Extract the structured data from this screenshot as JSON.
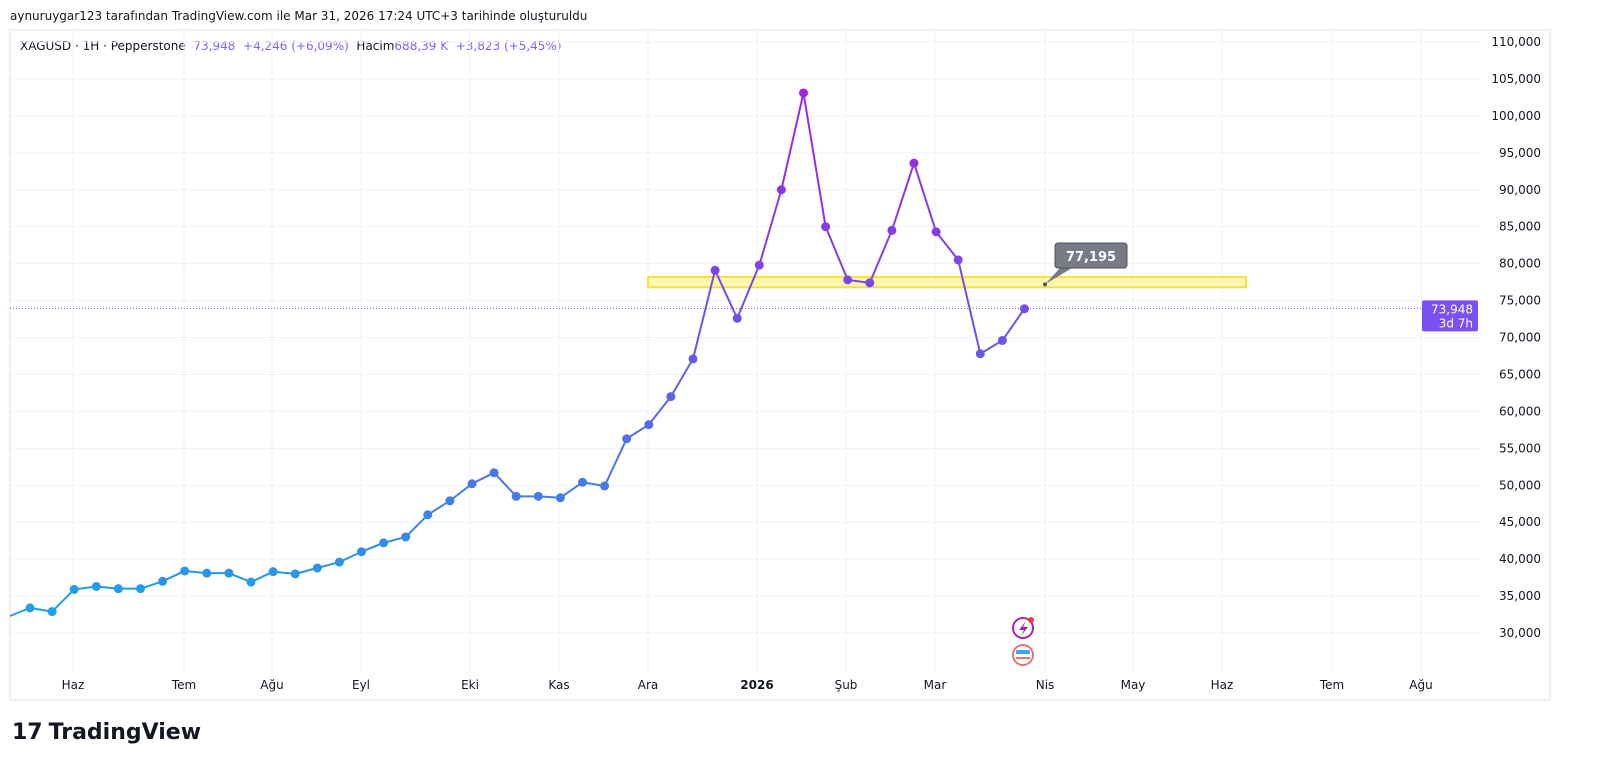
{
  "credit": "aynuruygar123 tarafından TradingView.com ile Mar 31, 2026 17:24 UTC+3 tarihinde oluşturuldu",
  "legend": {
    "symbol": "XAGUSD · 1H · Pepperstone",
    "price": "73,948",
    "change": "+4,246 (+6,09%)",
    "volume_label": "Hacim",
    "volume": "688,39 K",
    "volume_change": "+3,823 (+5,45%)"
  },
  "logo": "TradingView",
  "colors": {
    "low": "#1fa0e8",
    "high": "#a321e6",
    "accent": "#7b4ff0",
    "zone": "#fff176"
  },
  "chart_data": {
    "type": "line",
    "title": "XAGUSD 1H",
    "ylim": [
      25000,
      110000
    ],
    "y_ticks": [
      "110,000",
      "105,000",
      "100,000",
      "95,000",
      "90,000",
      "85,000",
      "80,000",
      "75,000",
      "70,000",
      "65,000",
      "60,000",
      "55,000",
      "50,000",
      "45,000",
      "40,000",
      "35,000",
      "30,000"
    ],
    "x_ticks": [
      "Haz",
      "Tem",
      "Ağu",
      "Eyl",
      "Eki",
      "Kas",
      "Ara",
      "2026",
      "Şub",
      "Mar",
      "Nis",
      "May",
      "Haz",
      "Tem",
      "Ağu"
    ],
    "values": [
      33400,
      32900,
      35900,
      36300,
      36000,
      36000,
      37000,
      38400,
      38100,
      38100,
      36900,
      38300,
      38000,
      38800,
      39600,
      41000,
      42200,
      43000,
      46000,
      47900,
      50200,
      51700,
      48500,
      48500,
      48300,
      50400,
      49900,
      56300,
      58200,
      62000,
      67100,
      79100,
      72600,
      79800,
      90000,
      103100,
      85000,
      77800,
      77400,
      84500,
      93600,
      84300,
      80500,
      67800,
      69600,
      73900
    ],
    "current_price": {
      "value": 73948,
      "label": "73,948",
      "countdown": "3d 7h"
    },
    "zone": {
      "low": 76800,
      "high": 78200
    },
    "annotation": {
      "value": 77195,
      "label": "77,195"
    }
  }
}
